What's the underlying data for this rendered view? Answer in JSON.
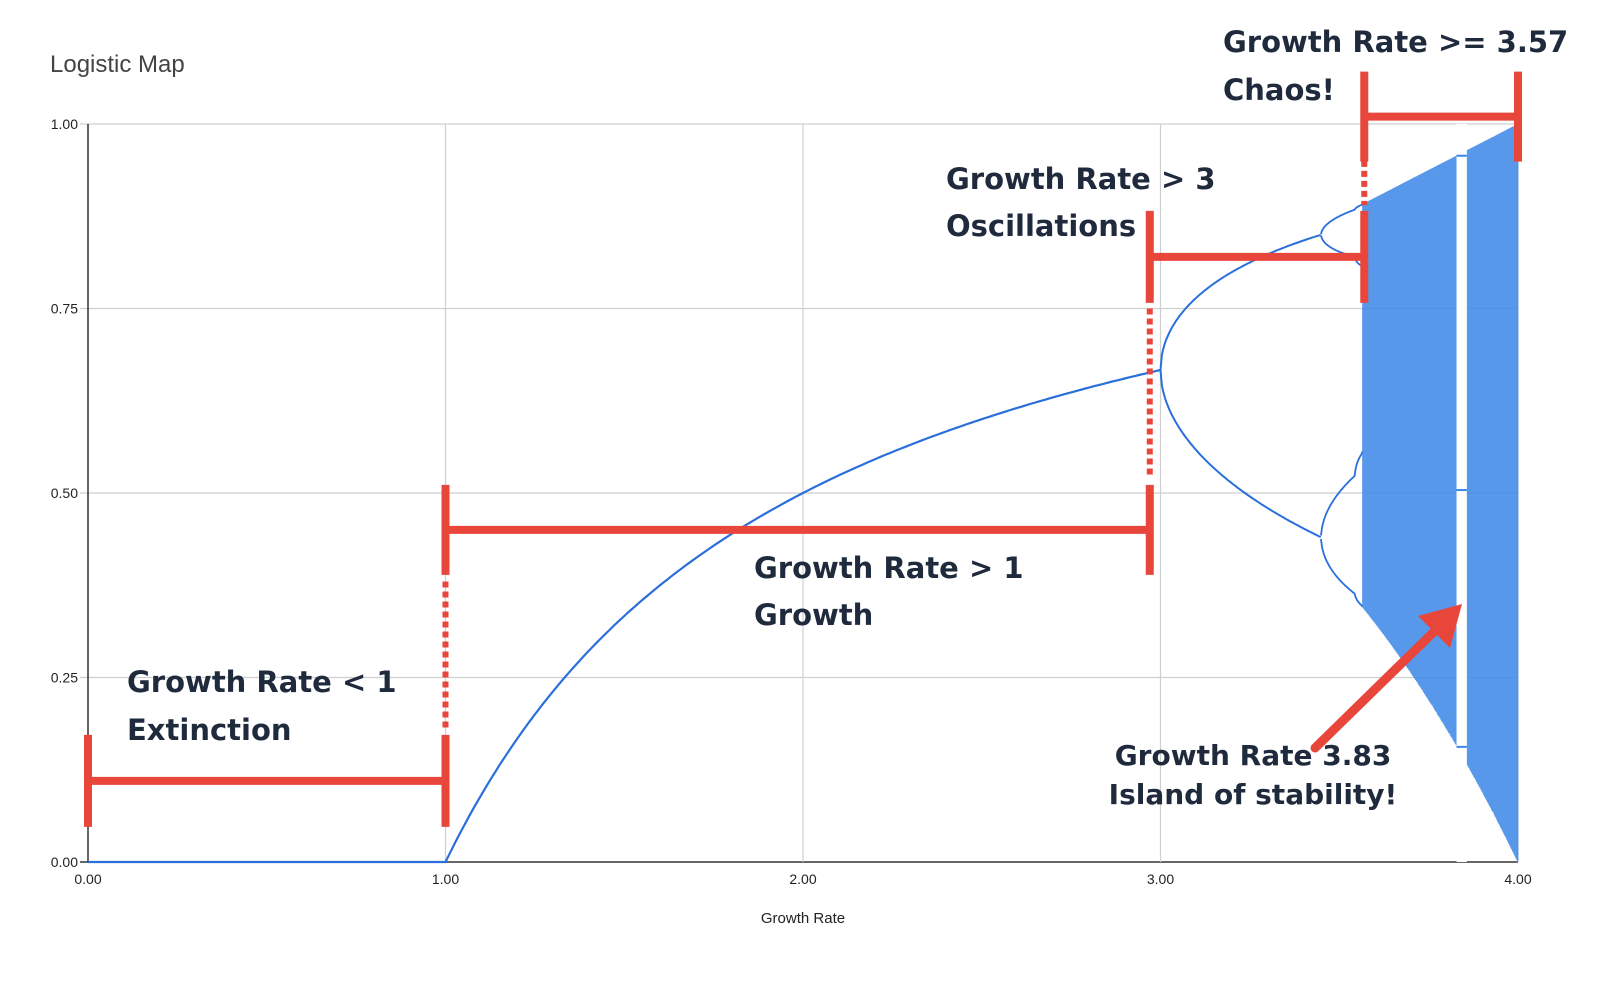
{
  "chart_data": {
    "type": "scatter",
    "title": "Logistic Map",
    "xlabel": "Growth Rate",
    "ylabel": "",
    "xlim": [
      0,
      4
    ],
    "ylim": [
      0,
      1
    ],
    "x_ticks": [
      "0.00",
      "1.00",
      "2.00",
      "3.00",
      "4.00"
    ],
    "y_ticks": [
      "0.00",
      "0.25",
      "0.50",
      "0.75",
      "1.00"
    ],
    "grid": true,
    "legend": "none",
    "series": [
      {
        "color": "#2a6fdb",
        "x": [
          0.0,
          0.5,
          0.99,
          1.0,
          1.2,
          1.5,
          1.8,
          2.0,
          2.4,
          2.8,
          3.0,
          3.2,
          3.4,
          3.449,
          3.5,
          3.544
        ],
        "y_branches": [
          [
            0.0,
            0.0,
            0.0,
            0.0,
            0.167,
            0.333,
            0.444,
            0.5,
            0.583,
            0.643,
            0.667,
            0.799,
            0.842,
            0.849,
            0.875,
            0.885
          ],
          [
            null,
            null,
            null,
            null,
            null,
            null,
            null,
            null,
            null,
            null,
            0.667,
            0.513,
            0.452,
            0.44,
            0.383,
            0.359
          ]
        ]
      }
    ],
    "annotations": [
      {
        "text": "Growth Rate < 1",
        "text2": "Extinction"
      },
      {
        "text": "Growth Rate > 1",
        "text2": "Growth"
      },
      {
        "text": "Growth Rate > 3",
        "text2": "Oscillations"
      },
      {
        "text": "Growth Rate >= 3.57",
        "text2": "Chaos!"
      },
      {
        "text": "Growth Rate 3.83",
        "text2": "Island of stability!"
      }
    ],
    "colors": {
      "curve": "#2a6fdb",
      "chaos": "#3a86e8",
      "annotation": "#e8463a",
      "annotation_text": "#1f2a3c"
    }
  }
}
